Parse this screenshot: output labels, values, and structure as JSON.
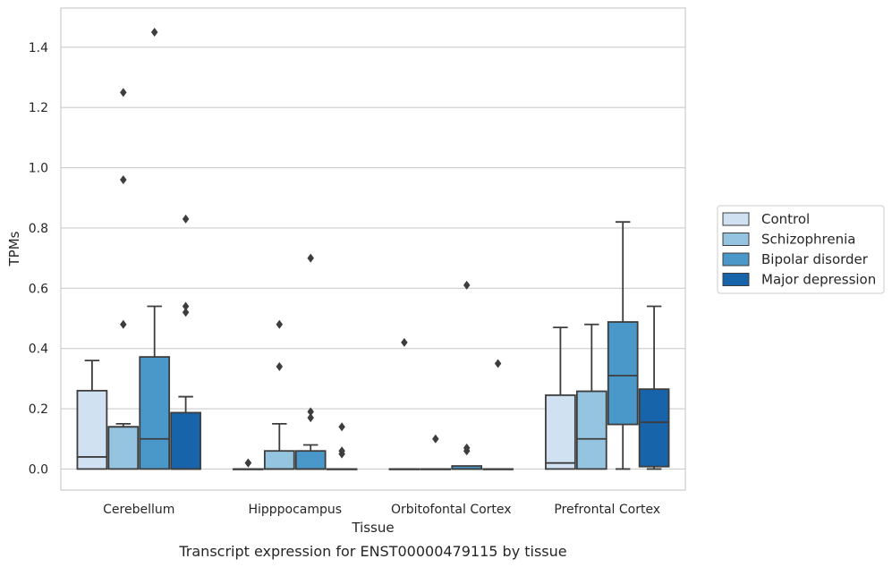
{
  "chart_data": {
    "type": "box",
    "title": "",
    "caption": "Transcript expression for ENST00000479115 by tissue",
    "xlabel": "Tissue",
    "ylabel": "TPMs",
    "ylim": [
      -0.07,
      1.53
    ],
    "yticks": [
      0.0,
      0.2,
      0.4,
      0.6,
      0.8,
      1.0,
      1.2,
      1.4
    ],
    "ytick_labels": [
      "0.0",
      "0.2",
      "0.4",
      "0.6",
      "0.8",
      "1.0",
      "1.2",
      "1.4"
    ],
    "grid": "horizontal",
    "legend_position": "right",
    "categories": [
      "Cerebellum",
      "Hipppocampus",
      "Orbitofontal Cortex",
      "Prefrontal Cortex"
    ],
    "series": [
      {
        "name": "Control",
        "color": "#d0e1f2",
        "boxes": [
          {
            "whisker_low": 0.0,
            "q1": 0.0,
            "median": 0.04,
            "q3": 0.26,
            "whisker_high": 0.36,
            "outliers": []
          },
          {
            "whisker_low": 0.0,
            "q1": 0.0,
            "median": 0.0,
            "q3": 0.0,
            "whisker_high": 0.0,
            "outliers": [
              0.02,
              0.02
            ]
          },
          {
            "whisker_low": 0.0,
            "q1": 0.0,
            "median": 0.0,
            "q3": 0.0,
            "whisker_high": 0.0,
            "outliers": [
              0.42
            ]
          },
          {
            "whisker_low": 0.0,
            "q1": 0.0,
            "median": 0.02,
            "q3": 0.245,
            "whisker_high": 0.47,
            "outliers": []
          }
        ]
      },
      {
        "name": "Schizophrenia",
        "color": "#94c4df",
        "boxes": [
          {
            "whisker_low": 0.0,
            "q1": 0.0,
            "median": 0.14,
            "q3": 0.14,
            "whisker_high": 0.15,
            "outliers": [
              0.48,
              0.96,
              1.25
            ]
          },
          {
            "whisker_low": 0.0,
            "q1": 0.0,
            "median": 0.0,
            "q3": 0.06,
            "whisker_high": 0.15,
            "outliers": [
              0.34,
              0.48
            ]
          },
          {
            "whisker_low": 0.0,
            "q1": 0.0,
            "median": 0.0,
            "q3": 0.0,
            "whisker_high": 0.0,
            "outliers": [
              0.1
            ]
          },
          {
            "whisker_low": 0.0,
            "q1": 0.0,
            "median": 0.1,
            "q3": 0.258,
            "whisker_high": 0.48,
            "outliers": []
          }
        ]
      },
      {
        "name": "Bipolar disorder",
        "color": "#4a98c9",
        "boxes": [
          {
            "whisker_low": 0.0,
            "q1": 0.0,
            "median": 0.1,
            "q3": 0.372,
            "whisker_high": 0.54,
            "outliers": [
              1.45
            ]
          },
          {
            "whisker_low": 0.0,
            "q1": 0.0,
            "median": 0.0,
            "q3": 0.06,
            "whisker_high": 0.08,
            "outliers": [
              0.17,
              0.19,
              0.7
            ]
          },
          {
            "whisker_low": 0.0,
            "q1": 0.0,
            "median": 0.0,
            "q3": 0.01,
            "whisker_high": 0.01,
            "outliers": [
              0.06,
              0.07,
              0.61
            ]
          },
          {
            "whisker_low": 0.0,
            "q1": 0.148,
            "median": 0.31,
            "q3": 0.488,
            "whisker_high": 0.82,
            "outliers": []
          }
        ]
      },
      {
        "name": "Major depression",
        "color": "#1764ab",
        "boxes": [
          {
            "whisker_low": 0.0,
            "q1": 0.0,
            "median": 0.0,
            "q3": 0.187,
            "whisker_high": 0.24,
            "outliers": [
              0.52,
              0.54,
              0.83
            ]
          },
          {
            "whisker_low": 0.0,
            "q1": 0.0,
            "median": 0.0,
            "q3": 0.0,
            "whisker_high": 0.0,
            "outliers": [
              0.05,
              0.06,
              0.14
            ]
          },
          {
            "whisker_low": 0.0,
            "q1": 0.0,
            "median": 0.0,
            "q3": 0.0,
            "whisker_high": 0.0,
            "outliers": [
              0.35
            ]
          },
          {
            "whisker_low": 0.0,
            "q1": 0.008,
            "median": 0.155,
            "q3": 0.265,
            "whisker_high": 0.54,
            "outliers": []
          }
        ]
      }
    ]
  }
}
